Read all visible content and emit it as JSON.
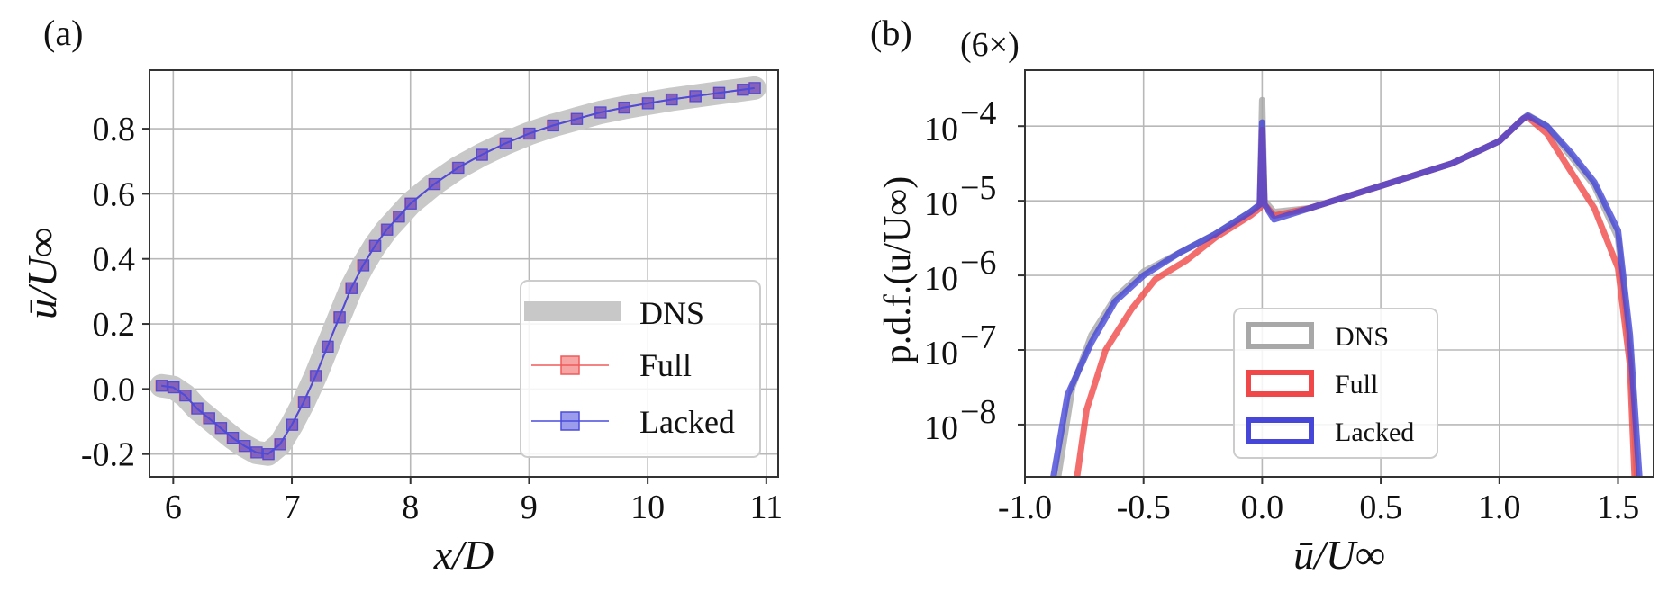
{
  "chart_data": [
    {
      "panel_label": "(a)",
      "type": "line",
      "title": "",
      "xlabel": "x/D",
      "ylabel": "ū/U∞",
      "xlim": [
        5.8,
        11.1
      ],
      "ylim": [
        -0.27,
        0.98
      ],
      "grid": true,
      "x_ticks": [
        6,
        7,
        8,
        9,
        10,
        11
      ],
      "x_tick_labels": [
        "6",
        "7",
        "8",
        "9",
        "10",
        "11"
      ],
      "y_ticks": [
        -0.2,
        0.0,
        0.2,
        0.4,
        0.6,
        0.8
      ],
      "y_tick_labels": [
        "-0.2",
        "0.0",
        "0.2",
        "0.4",
        "0.6",
        "0.8"
      ],
      "legend_position": "lower-right",
      "series": [
        {
          "name": "DNS",
          "color": "#c8c8c8",
          "style": "thick-line",
          "x": [
            5.9,
            6.0,
            6.1,
            6.2,
            6.3,
            6.4,
            6.5,
            6.6,
            6.7,
            6.8,
            6.9,
            7.0,
            7.1,
            7.2,
            7.3,
            7.4,
            7.5,
            7.6,
            7.7,
            7.8,
            7.9,
            8.0,
            8.2,
            8.4,
            8.6,
            8.8,
            9.0,
            9.2,
            9.4,
            9.6,
            9.8,
            10.0,
            10.2,
            10.4,
            10.6,
            10.8,
            10.9
          ],
          "y": [
            0.01,
            0.005,
            -0.02,
            -0.06,
            -0.09,
            -0.12,
            -0.15,
            -0.175,
            -0.195,
            -0.2,
            -0.17,
            -0.11,
            -0.04,
            0.04,
            0.13,
            0.22,
            0.31,
            0.38,
            0.44,
            0.49,
            0.53,
            0.57,
            0.63,
            0.68,
            0.72,
            0.755,
            0.785,
            0.81,
            0.83,
            0.85,
            0.865,
            0.878,
            0.89,
            0.9,
            0.91,
            0.92,
            0.925
          ]
        },
        {
          "name": "Full",
          "color": "#f05a5a",
          "style": "line-square-markers",
          "x": [
            5.9,
            6.0,
            6.1,
            6.2,
            6.3,
            6.4,
            6.5,
            6.6,
            6.7,
            6.8,
            6.9,
            7.0,
            7.1,
            7.2,
            7.3,
            7.4,
            7.5,
            7.6,
            7.7,
            7.8,
            7.9,
            8.0,
            8.2,
            8.4,
            8.6,
            8.8,
            9.0,
            9.2,
            9.4,
            9.6,
            9.8,
            10.0,
            10.2,
            10.4,
            10.6,
            10.8,
            10.9
          ],
          "y": [
            0.01,
            0.005,
            -0.02,
            -0.06,
            -0.09,
            -0.12,
            -0.15,
            -0.175,
            -0.195,
            -0.2,
            -0.17,
            -0.11,
            -0.04,
            0.04,
            0.13,
            0.22,
            0.31,
            0.38,
            0.44,
            0.49,
            0.53,
            0.57,
            0.63,
            0.68,
            0.72,
            0.755,
            0.785,
            0.81,
            0.83,
            0.85,
            0.865,
            0.878,
            0.89,
            0.9,
            0.91,
            0.92,
            0.925
          ]
        },
        {
          "name": "Lacked",
          "color": "#4b4bdc",
          "style": "line-square-markers",
          "x": [
            5.9,
            6.0,
            6.1,
            6.2,
            6.3,
            6.4,
            6.5,
            6.6,
            6.7,
            6.8,
            6.9,
            7.0,
            7.1,
            7.2,
            7.3,
            7.4,
            7.5,
            7.6,
            7.7,
            7.8,
            7.9,
            8.0,
            8.2,
            8.4,
            8.6,
            8.8,
            9.0,
            9.2,
            9.4,
            9.6,
            9.8,
            10.0,
            10.2,
            10.4,
            10.6,
            10.8,
            10.9
          ],
          "y": [
            0.01,
            0.005,
            -0.02,
            -0.06,
            -0.09,
            -0.12,
            -0.15,
            -0.175,
            -0.195,
            -0.2,
            -0.17,
            -0.11,
            -0.04,
            0.04,
            0.13,
            0.22,
            0.31,
            0.38,
            0.44,
            0.49,
            0.53,
            0.57,
            0.63,
            0.68,
            0.72,
            0.755,
            0.785,
            0.81,
            0.83,
            0.85,
            0.865,
            0.878,
            0.89,
            0.9,
            0.91,
            0.92,
            0.925
          ]
        }
      ]
    },
    {
      "panel_label": "(b)",
      "type": "line",
      "title": "",
      "xlabel": "ū/U∞",
      "ylabel": "p.d.f.(u/U∞)",
      "y_scale": "log",
      "y_scale_note": "(6×)",
      "xlim": [
        -1.0,
        1.65
      ],
      "ylim_log10": [
        -8.7,
        -3.25
      ],
      "grid": true,
      "x_ticks": [
        -1.0,
        -0.5,
        0.0,
        0.5,
        1.0,
        1.5
      ],
      "x_tick_labels": [
        "-1.0",
        "-0.5",
        "0.0",
        "0.5",
        "1.0",
        "1.5"
      ],
      "y_ticks_log10": [
        -8,
        -7,
        -6,
        -5,
        -4
      ],
      "y_tick_labels": [
        "10",
        "10",
        "10",
        "10",
        "10"
      ],
      "y_tick_exponents": [
        "−8",
        "−7",
        "−6",
        "−5",
        "−4"
      ],
      "legend_position": "lower-center",
      "series": [
        {
          "name": "DNS",
          "color": "#a8a8a8",
          "x": [
            -0.86,
            -0.8,
            -0.72,
            -0.62,
            -0.5,
            -0.35,
            -0.2,
            -0.05,
            -0.01,
            0.0,
            0.01,
            0.05,
            0.2,
            0.5,
            0.8,
            1.0,
            1.1,
            1.12,
            1.2,
            1.3,
            1.4,
            1.5,
            1.55,
            1.58
          ],
          "y_log10": [
            -8.7,
            -7.5,
            -6.8,
            -6.3,
            -5.95,
            -5.7,
            -5.45,
            -5.15,
            -5.05,
            -3.65,
            -5.0,
            -5.15,
            -5.1,
            -4.8,
            -4.5,
            -4.2,
            -3.9,
            -3.85,
            -4.0,
            -4.4,
            -4.8,
            -5.5,
            -7.0,
            -8.7
          ]
        },
        {
          "name": "Full",
          "color": "#f04848",
          "x": [
            -0.78,
            -0.74,
            -0.66,
            -0.55,
            -0.45,
            -0.32,
            -0.2,
            -0.05,
            -0.01,
            0.0,
            0.01,
            0.05,
            0.2,
            0.5,
            0.8,
            1.0,
            1.1,
            1.12,
            1.2,
            1.3,
            1.4,
            1.5,
            1.55,
            1.57
          ],
          "y_log10": [
            -8.7,
            -7.8,
            -7.0,
            -6.45,
            -6.05,
            -5.8,
            -5.5,
            -5.2,
            -5.1,
            -4.05,
            -5.05,
            -5.2,
            -5.1,
            -4.8,
            -4.5,
            -4.2,
            -3.9,
            -3.88,
            -4.1,
            -4.6,
            -5.1,
            -5.9,
            -7.2,
            -8.7
          ]
        },
        {
          "name": "Lacked",
          "color": "#4646d8",
          "x": [
            -0.88,
            -0.82,
            -0.72,
            -0.62,
            -0.5,
            -0.35,
            -0.2,
            -0.05,
            -0.01,
            0.0,
            0.01,
            0.05,
            0.2,
            0.5,
            0.8,
            1.0,
            1.1,
            1.12,
            1.2,
            1.3,
            1.4,
            1.5,
            1.55,
            1.59
          ],
          "y_log10": [
            -8.7,
            -7.6,
            -6.9,
            -6.35,
            -6.0,
            -5.7,
            -5.45,
            -5.15,
            -5.05,
            -3.95,
            -5.05,
            -5.25,
            -5.1,
            -4.8,
            -4.5,
            -4.2,
            -3.9,
            -3.86,
            -4.0,
            -4.35,
            -4.75,
            -5.4,
            -6.8,
            -8.7
          ]
        }
      ]
    }
  ]
}
